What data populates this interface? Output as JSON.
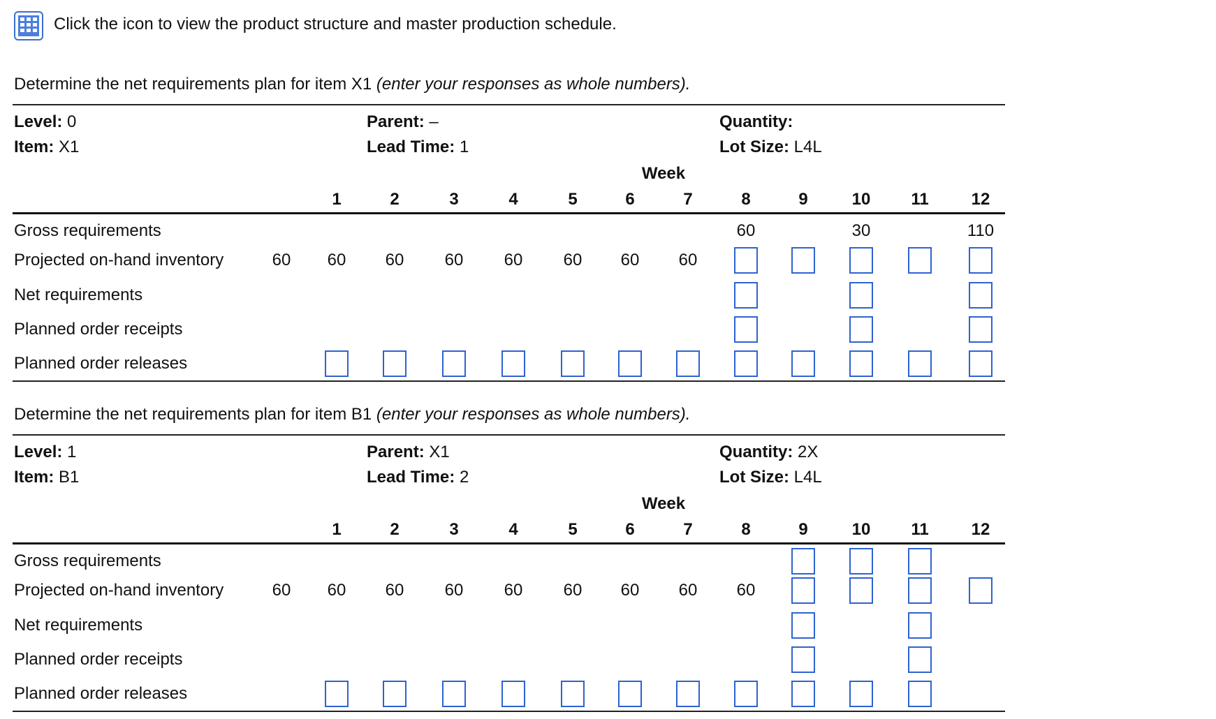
{
  "instruction": "Click the icon to view the product structure and master production schedule.",
  "icon": {
    "name": "table-grid-icon",
    "color": "#3b6fd0"
  },
  "input_box_color": "#2e63d0",
  "labels": {
    "level": "Level:",
    "item": "Item:",
    "parent": "Parent:",
    "lead_time": "Lead Time:",
    "quantity": "Quantity:",
    "lot_size": "Lot Size:",
    "week": "Week"
  },
  "weeks": [
    "1",
    "2",
    "3",
    "4",
    "5",
    "6",
    "7",
    "8",
    "9",
    "10",
    "11",
    "12"
  ],
  "row_labels": [
    "Gross requirements",
    "Projected on-hand inventory",
    "Net requirements",
    "Planned order receipts",
    "Planned order releases"
  ],
  "tables": [
    {
      "prompt_main": "Determine the net requirements plan for item X1",
      "prompt_note": "(enter your responses as whole numbers).",
      "level": "0",
      "item": "X1",
      "parent": "–",
      "lead_time": "1",
      "quantity": "",
      "lot_size": "L4L",
      "initial_on_hand": "60",
      "gross": [
        "",
        "",
        "",
        "",
        "",
        "",
        "",
        "60",
        "",
        "30",
        "",
        "110"
      ],
      "on_hand": [
        "60",
        "60",
        "60",
        "60",
        "60",
        "60",
        "60",
        "",
        "",
        "",
        "",
        ""
      ],
      "on_hand_inputs": [
        8,
        9,
        10,
        11,
        12
      ],
      "net_inputs": [
        8,
        10,
        12
      ],
      "receipt_inputs": [
        8,
        10,
        12
      ],
      "release_inputs": [
        1,
        2,
        3,
        4,
        5,
        6,
        7,
        8,
        9,
        10,
        11,
        12
      ],
      "gross_inputs": []
    },
    {
      "prompt_main": "Determine the net requirements plan for item B1",
      "prompt_note": "(enter your responses as whole numbers).",
      "level": "1",
      "item": "B1",
      "parent": "X1",
      "lead_time": "2",
      "quantity": "2X",
      "lot_size": "L4L",
      "initial_on_hand": "60",
      "gross": [
        "",
        "",
        "",
        "",
        "",
        "",
        "",
        "",
        "",
        "",
        "",
        ""
      ],
      "on_hand": [
        "60",
        "60",
        "60",
        "60",
        "60",
        "60",
        "60",
        "60",
        "",
        "",
        "",
        ""
      ],
      "gross_inputs": [
        9,
        10,
        11
      ],
      "on_hand_inputs": [
        9,
        10,
        11,
        12
      ],
      "net_inputs": [
        9,
        11
      ],
      "receipt_inputs": [
        9,
        11
      ],
      "release_inputs": [
        1,
        2,
        3,
        4,
        5,
        6,
        7,
        8,
        9,
        10,
        11
      ]
    }
  ]
}
